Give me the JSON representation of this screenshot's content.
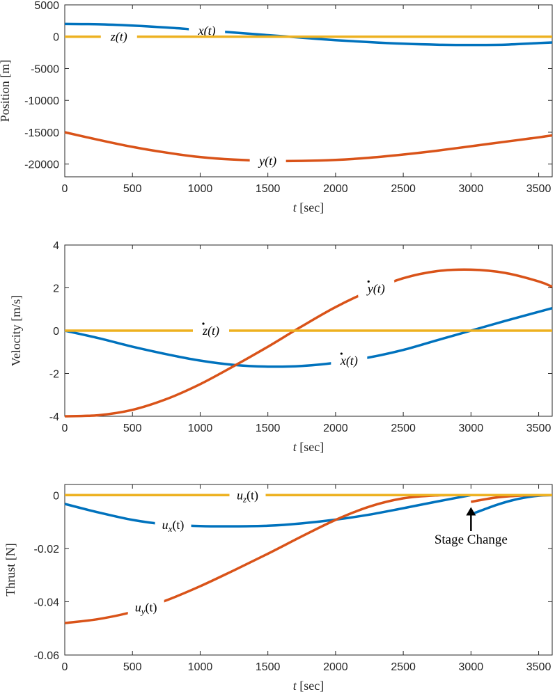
{
  "chart_data": [
    {
      "type": "line",
      "id": "position",
      "xlabel_var": "t",
      "xlabel_unit": "[sec]",
      "ylabel": "Position [m]",
      "xlim": [
        0,
        3600
      ],
      "ylim": [
        -22000,
        5000
      ],
      "xticks": [
        0,
        500,
        1000,
        1500,
        2000,
        2500,
        3000,
        3500
      ],
      "yticks": [
        5000,
        0,
        -5000,
        -10000,
        -15000,
        -20000
      ],
      "series": [
        {
          "name": "x",
          "label": "x(t)",
          "color": "#0072BD",
          "x": [
            0,
            250,
            500,
            750,
            1000,
            1250,
            1500,
            1750,
            2000,
            2250,
            2500,
            2750,
            3000,
            3250,
            3500,
            3600
          ],
          "y": [
            2000,
            1950,
            1750,
            1450,
            1050,
            650,
            250,
            -150,
            -550,
            -850,
            -1100,
            -1250,
            -1300,
            -1250,
            -1000,
            -900
          ],
          "label_at": 1050
        },
        {
          "name": "y",
          "label": "y(t)",
          "color": "#D95319",
          "x": [
            0,
            250,
            500,
            750,
            1000,
            1250,
            1500,
            1750,
            2000,
            2250,
            2500,
            2750,
            3000,
            3250,
            3500,
            3600
          ],
          "y": [
            -15000,
            -16200,
            -17300,
            -18200,
            -18900,
            -19300,
            -19500,
            -19500,
            -19350,
            -19000,
            -18500,
            -17900,
            -17200,
            -16500,
            -15800,
            -15500
          ],
          "label_at": 1500
        },
        {
          "name": "z",
          "label": "z(t)",
          "color": "#EDB120",
          "x": [
            0,
            3600
          ],
          "y": [
            0,
            0
          ],
          "label_at": 400
        }
      ]
    },
    {
      "type": "line",
      "id": "velocity",
      "xlabel_var": "t",
      "xlabel_unit": "[sec]",
      "ylabel": "Velocity [m/s]",
      "xlim": [
        0,
        3600
      ],
      "ylim": [
        -4,
        4
      ],
      "xticks": [
        0,
        500,
        1000,
        1500,
        2000,
        2500,
        3000,
        3500
      ],
      "yticks": [
        4,
        2,
        0,
        -2,
        -4
      ],
      "series": [
        {
          "name": "xdot",
          "label": "x(t)",
          "color": "#0072BD",
          "x": [
            0,
            250,
            500,
            750,
            1000,
            1250,
            1500,
            1750,
            2000,
            2250,
            2500,
            2750,
            3000,
            3250,
            3500,
            3600
          ],
          "y": [
            0,
            -0.35,
            -0.75,
            -1.1,
            -1.4,
            -1.6,
            -1.68,
            -1.65,
            -1.5,
            -1.25,
            -0.9,
            -0.45,
            0.0,
            0.45,
            0.88,
            1.05
          ],
          "label_at": 2100
        },
        {
          "name": "ydot",
          "label": "y(t)",
          "color": "#D95319",
          "x": [
            0,
            250,
            500,
            750,
            1000,
            1250,
            1500,
            1750,
            2000,
            2250,
            2500,
            2750,
            3000,
            3250,
            3500,
            3600
          ],
          "y": [
            -4.0,
            -3.95,
            -3.7,
            -3.2,
            -2.5,
            -1.65,
            -0.75,
            0.2,
            1.1,
            1.85,
            2.45,
            2.78,
            2.85,
            2.7,
            2.3,
            2.05
          ],
          "label_at": 2300
        },
        {
          "name": "zdot",
          "label": "z(t)",
          "color": "#EDB120",
          "x": [
            0,
            3600
          ],
          "y": [
            0,
            0
          ],
          "label_at": 1080
        }
      ]
    },
    {
      "type": "line",
      "id": "thrust",
      "xlabel_var": "t",
      "xlabel_unit": "[sec]",
      "ylabel": "Thrust [N]",
      "xlim": [
        0,
        3600
      ],
      "ylim": [
        -0.06,
        0.004
      ],
      "xticks": [
        0,
        500,
        1000,
        1500,
        2000,
        2500,
        3000,
        3500
      ],
      "yticks": [
        0,
        -0.02,
        -0.04,
        -0.06
      ],
      "series": [
        {
          "name": "ux",
          "label": "ux(t)",
          "sub": "x",
          "color": "#0072BD",
          "x": [
            0,
            250,
            500,
            750,
            1000,
            1250,
            1500,
            1750,
            2000,
            2250,
            2500,
            2750,
            3000
          ],
          "y": [
            -0.0033,
            -0.0065,
            -0.0093,
            -0.011,
            -0.0116,
            -0.0117,
            -0.0115,
            -0.0106,
            -0.0092,
            -0.0073,
            -0.0049,
            -0.0024,
            0.0
          ],
          "x2": [
            3000,
            3100,
            3200,
            3300,
            3400,
            3500,
            3600
          ],
          "y2": [
            -0.0072,
            -0.0053,
            -0.0035,
            -0.002,
            -0.0009,
            -0.0002,
            0.0
          ],
          "label_at": 800
        },
        {
          "name": "uy",
          "label": "uy(t)",
          "sub": "y",
          "color": "#D95319",
          "x": [
            0,
            250,
            500,
            750,
            1000,
            1250,
            1500,
            1750,
            2000,
            2250,
            2500,
            2750,
            3000
          ],
          "y": [
            -0.048,
            -0.0465,
            -0.0438,
            -0.0395,
            -0.0342,
            -0.0282,
            -0.022,
            -0.0155,
            -0.0093,
            -0.0043,
            -0.0012,
            -0.0001,
            0.0
          ],
          "x2": [
            3000,
            3200,
            3400,
            3600
          ],
          "y2": [
            -0.0025,
            -0.0008,
            -0.0001,
            0.0
          ],
          "label_at": 600
        },
        {
          "name": "uz",
          "label": "uz(t)",
          "sub": "z",
          "color": "#EDB120",
          "x": [
            0,
            3600
          ],
          "y": [
            0,
            0
          ],
          "label_at": 1350
        }
      ],
      "annotation": {
        "text": "Stage Change",
        "x": 3000,
        "y_tip": -0.0045,
        "y_tail": -0.0135
      }
    }
  ]
}
